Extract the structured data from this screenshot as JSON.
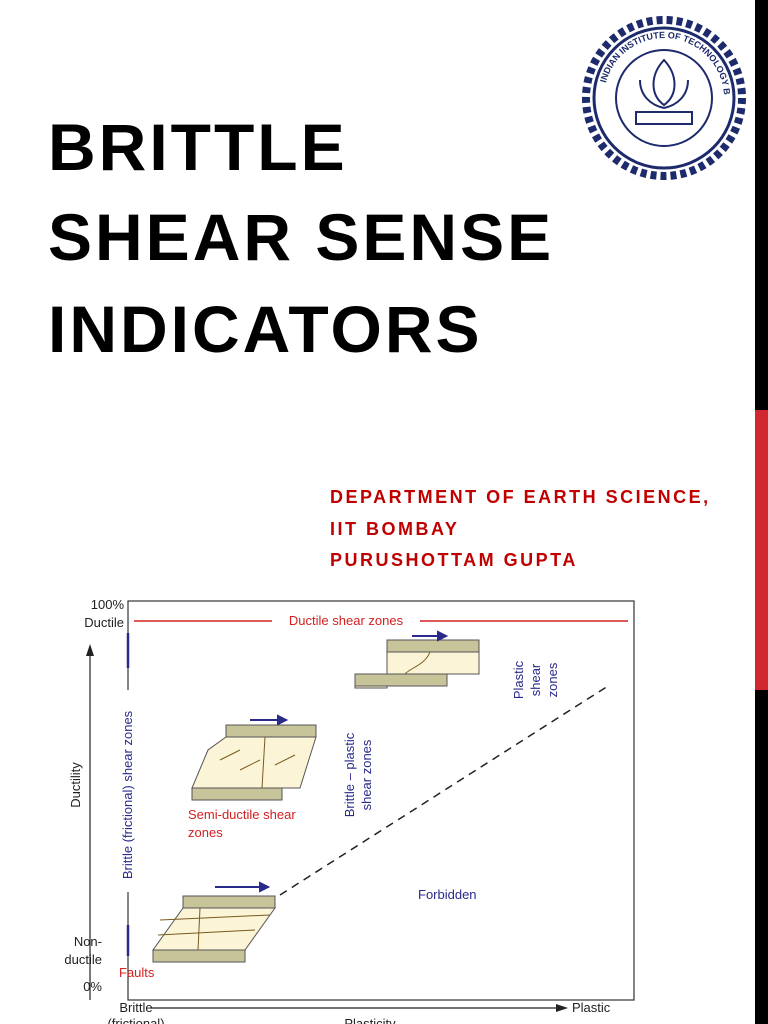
{
  "header": {
    "title": [
      "BRITTLE",
      "SHEAR SENSE",
      "INDICATORS"
    ],
    "subtitle": [
      "DEPARTMENT OF EARTH SCIENCE,",
      "IIT BOMBAY",
      "PURUSHOTTAM GUPTA"
    ],
    "logo_text": "INDIAN INSTITUTE OF TECHNOLOGY BOMBAY"
  },
  "figure": {
    "y_axis": {
      "label": "Ductility",
      "top": [
        "100%",
        "Ductile"
      ],
      "bottom": [
        "Non-",
        "ductile",
        "0%"
      ]
    },
    "x_axis": {
      "label": "Plasticity",
      "left": [
        "Brittle",
        "(frictional)"
      ],
      "right": "Plastic"
    },
    "regions": {
      "ductile": "Ductile shear zones",
      "plastic": [
        "Plastic",
        "shear",
        "zones"
      ],
      "brittle": "Brittle (frictional) shear zones",
      "semi_ductile": [
        "Semi-ductile shear",
        "zones"
      ],
      "brittle_plastic": [
        "Brittle – plastic",
        "shear zones"
      ],
      "forbidden": "Forbidden",
      "faults": "Faults"
    }
  }
}
